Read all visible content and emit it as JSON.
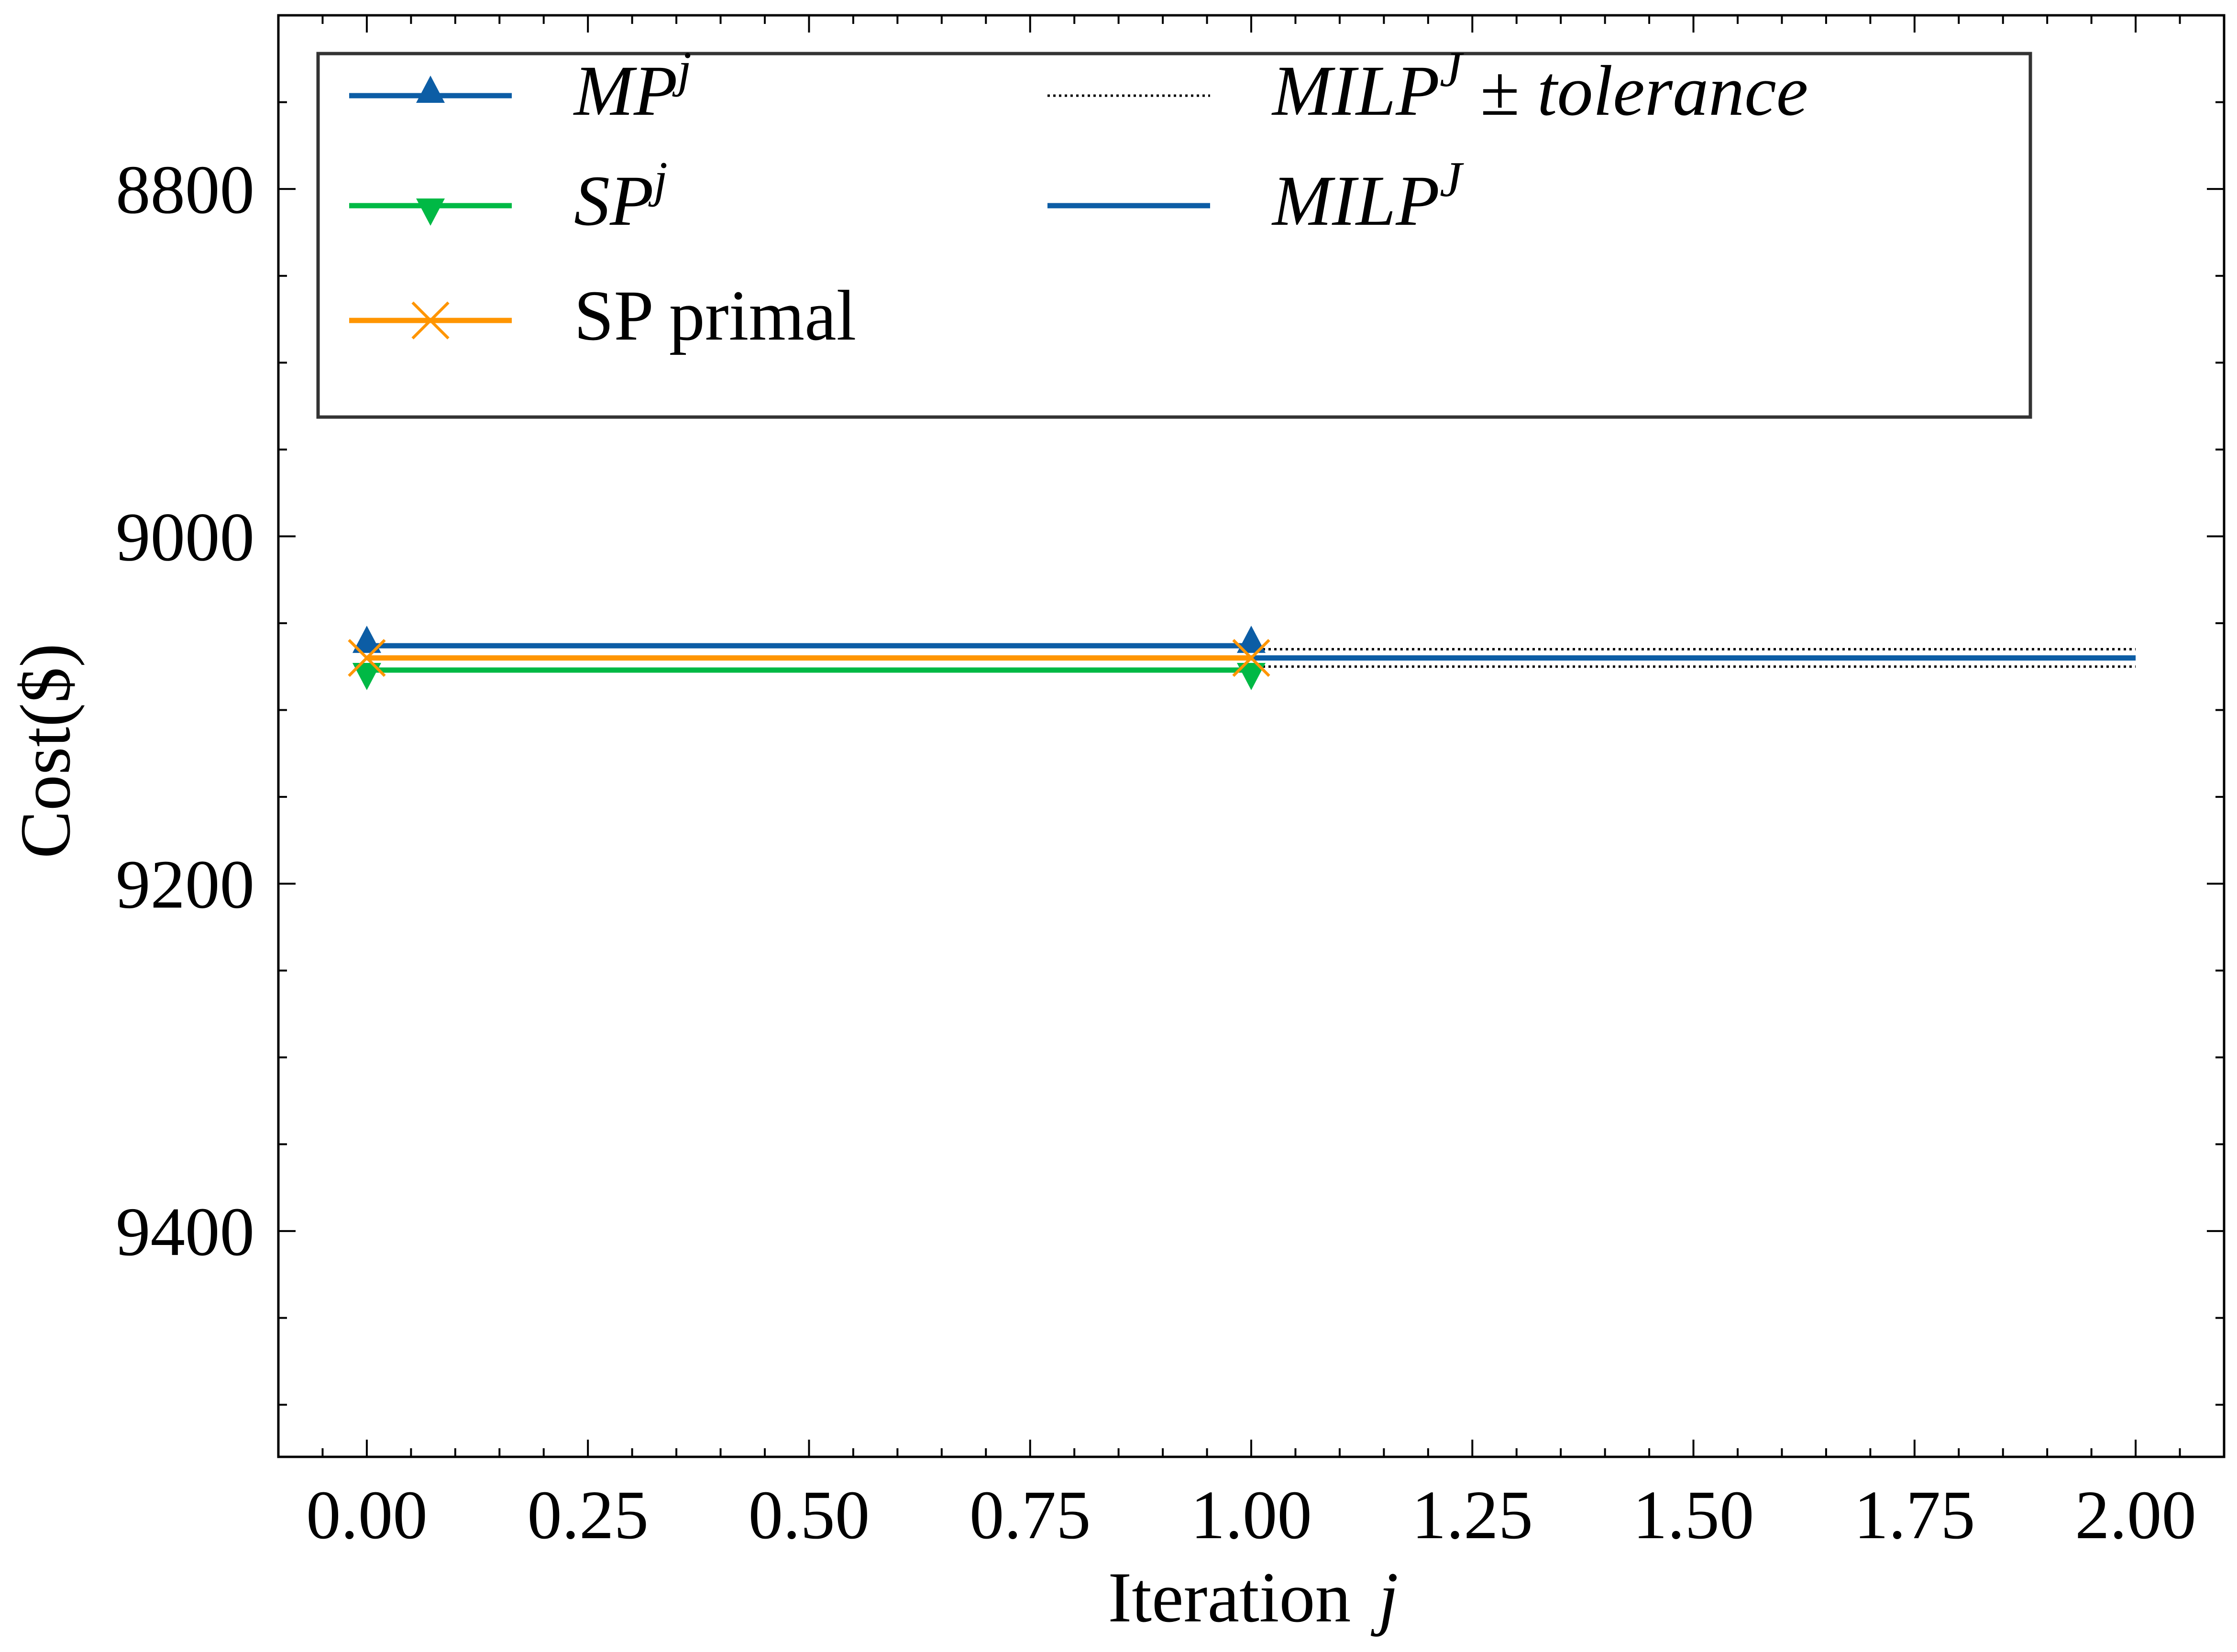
{
  "chart_data": {
    "type": "line",
    "xlabel": "Iteration",
    "xlabel_var": "j",
    "ylabel": "Cost($)",
    "xlim": [
      -0.1,
      2.1
    ],
    "ylim": [
      9530,
      8700
    ],
    "y_inverted": true,
    "xticks": [
      0.0,
      0.25,
      0.5,
      0.75,
      1.0,
      1.25,
      1.5,
      1.75,
      2.0
    ],
    "xtick_labels": [
      "0.00",
      "0.25",
      "0.50",
      "0.75",
      "1.00",
      "1.25",
      "1.50",
      "1.75",
      "2.00"
    ],
    "yticks": [
      8800,
      9000,
      9200,
      9400
    ],
    "ytick_labels": [
      "8800",
      "9000",
      "9200",
      "9400"
    ],
    "legend_placement": "top-left",
    "series": [
      {
        "name": "MP",
        "name_sup": "j",
        "math": true,
        "color": "#0C5DA5",
        "marker": "triangle-up",
        "style": "solid",
        "x": [
          0,
          1
        ],
        "y": [
          9063,
          9063
        ]
      },
      {
        "name": "SP",
        "name_sup": "j",
        "math": true,
        "color": "#00B945",
        "marker": "triangle-down",
        "style": "solid",
        "x": [
          0,
          1
        ],
        "y": [
          9077,
          9077
        ]
      },
      {
        "name": "SP primal",
        "name_sup": "",
        "math": false,
        "color": "#FF9500",
        "marker": "x",
        "style": "solid",
        "x": [
          0,
          1
        ],
        "y": [
          9070,
          9070
        ]
      },
      {
        "name": "MILP",
        "name_sup": "J",
        "name_suffix": "± tolerance",
        "math": true,
        "color": "#000000",
        "marker": "none",
        "style": "dotted",
        "x": [
          1,
          2
        ],
        "y_upper": [
          9065,
          9065
        ],
        "y_lower": [
          9075,
          9075
        ]
      },
      {
        "name": "MILP",
        "name_sup": "J",
        "math": true,
        "color": "#0C5DA5",
        "marker": "none",
        "style": "solid",
        "x": [
          1,
          2
        ],
        "y": [
          9070,
          9070
        ]
      }
    ]
  }
}
